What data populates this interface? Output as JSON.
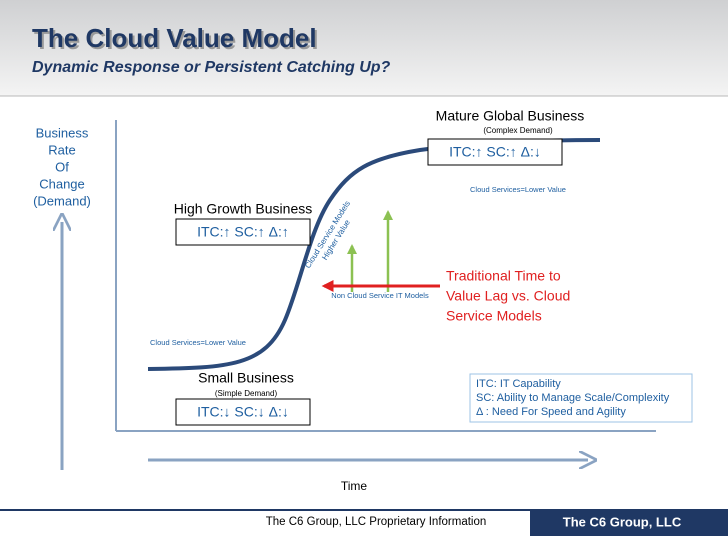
{
  "header": {
    "title": "The Cloud Value Model",
    "subtitle": "Dynamic Response or Persistent Catching Up?"
  },
  "y_axis_label": [
    "Business",
    "Rate",
    "Of",
    "Change",
    "(Demand)"
  ],
  "x_axis_label": "Time",
  "mature": {
    "label": "Mature Global Business",
    "demand": "(Complex Demand)",
    "indicators": "ITC:↑  SC:↑  Δ:↓",
    "note": "Cloud Services=Lower Value"
  },
  "growth": {
    "label": "High Growth Business",
    "indicators": "ITC:↑  SC:↑  Δ:↑",
    "rotated_note": [
      "Cloud Service Models",
      "Higher Value"
    ]
  },
  "small": {
    "label": "Small Business",
    "demand": "(Simple Demand)",
    "indicators": "ITC:↓  SC:↓  Δ:↓",
    "note": "Cloud Services=Lower Value"
  },
  "lag": {
    "text": [
      "Traditional Time to",
      "Value Lag vs. Cloud",
      "Service Models"
    ],
    "note": "Non Cloud Service   IT Models"
  },
  "legend": [
    "ITC: IT Capability",
    "SC: Ability to Manage Scale/Complexity",
    "Δ :   Need For Speed and Agility"
  ],
  "footer": {
    "notice": "The C6 Group, LLC Proprietary Information",
    "brand": "The C6 Group, LLC"
  }
}
